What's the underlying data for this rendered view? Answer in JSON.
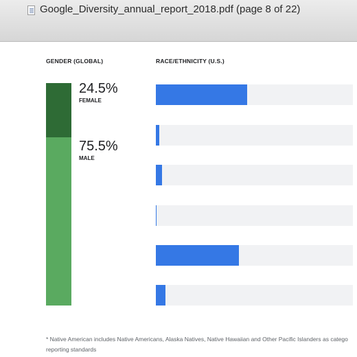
{
  "window": {
    "title": "Google_Diversity_annual_report_2018.pdf (page 8 of 22)",
    "icon": "pdf-document-icon"
  },
  "gender": {
    "heading": "GENDER (GLOBAL)",
    "female": {
      "percent": "24.5%",
      "label": "FEMALE",
      "value": 24.5
    },
    "male": {
      "percent": "75.5%",
      "label": "MALE",
      "value": 75.5
    },
    "colors": {
      "female": "#2e6b35",
      "male": "#5aaa60"
    }
  },
  "race": {
    "heading": "RACE/ETHNICITY  (U.S.)",
    "colors": {
      "fill": "#3578e5",
      "track": "#f1f2f4"
    }
  },
  "chart_data": [
    {
      "type": "bar",
      "title": "GENDER (GLOBAL)",
      "categories": [
        "FEMALE",
        "MALE"
      ],
      "values": [
        24.5,
        75.5
      ],
      "ylim": [
        0,
        100
      ]
    },
    {
      "type": "bar",
      "title": "RACE/ETHNICITY  (U.S.)",
      "categories": [
        "",
        "",
        "",
        "",
        "",
        ""
      ],
      "values": [
        46.5,
        1.8,
        3.0,
        0.3,
        42.0,
        5.0
      ],
      "xlim": [
        0,
        100
      ]
    }
  ],
  "footnote": {
    "line1": "* Native American includes Native Americans, Alaska Natives, Native Hawaiian and Other Pacific Islanders as catego",
    "line2": "reporting standards"
  }
}
